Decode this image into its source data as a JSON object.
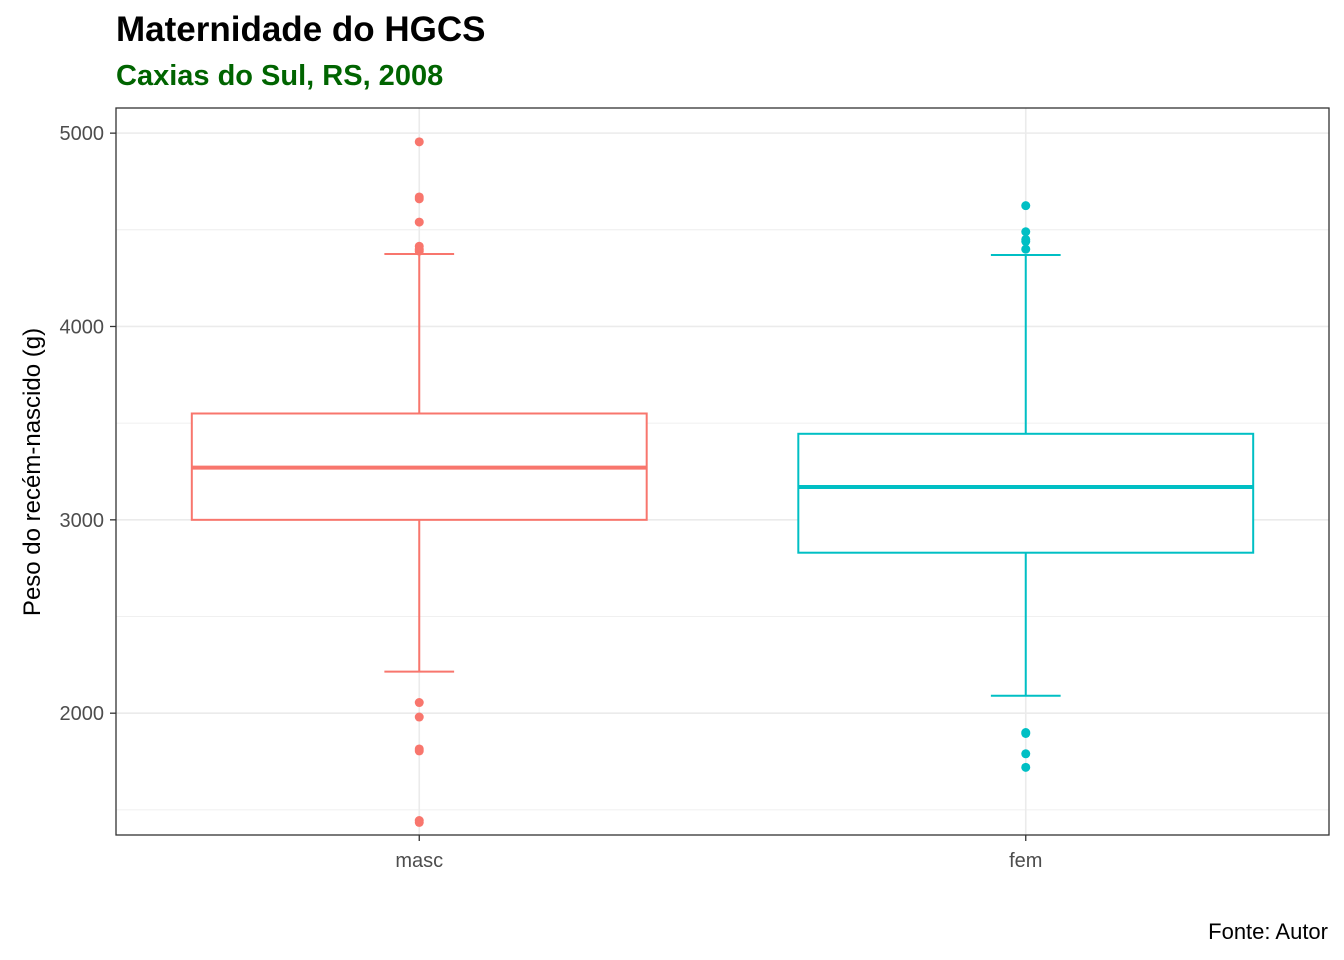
{
  "chart_data": {
    "type": "boxplot",
    "title": "Maternidade do HGCS",
    "subtitle": "Caxias do Sul, RS, 2008",
    "caption": "Fonte: Autor",
    "xlabel": "",
    "ylabel": "Peso do recém-nascido (g)",
    "ylim": [
      1370,
      5130
    ],
    "y_ticks": [
      2000,
      3000,
      4000,
      5000
    ],
    "y_minor_ticks": [
      1500,
      2500,
      3500,
      4500
    ],
    "grid": true,
    "legend": "none",
    "categories": [
      "masc",
      "fem"
    ],
    "series": [
      {
        "category": "masc",
        "color": "#F8766D",
        "whisker_low": 2215,
        "q1": 3000,
        "median": 3270,
        "q3": 3550,
        "whisker_high": 4375,
        "outliers": [
          4955,
          4670,
          4660,
          4540,
          4415,
          4400,
          4390,
          2055,
          1980,
          1815,
          1805,
          1445,
          1435
        ]
      },
      {
        "category": "fem",
        "color": "#00BFC4",
        "whisker_low": 2090,
        "q1": 2830,
        "median": 3170,
        "q3": 3445,
        "whisker_high": 4370,
        "outliers": [
          4625,
          4490,
          4450,
          4440,
          4400,
          1900,
          1895,
          1790,
          1720
        ]
      }
    ]
  },
  "colors": {
    "subtitle": "#006400",
    "grid": "#ebebeb",
    "panel_border": "#333333",
    "tick_text": "#4d4d4d"
  }
}
